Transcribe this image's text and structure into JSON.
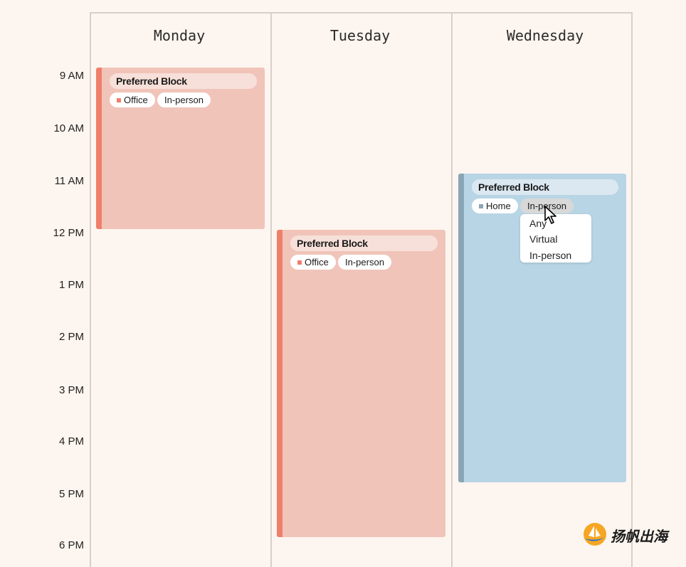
{
  "days": [
    "Monday",
    "Tuesday",
    "Wednesday"
  ],
  "times": [
    "9 AM",
    "10 AM",
    "11 AM",
    "12 PM",
    "1 PM",
    "2 PM",
    "3 PM",
    "4 PM",
    "5 PM",
    "6 PM"
  ],
  "blocks": [
    {
      "title": "Preferred Block",
      "location": "Office",
      "mode": "In-person",
      "color": "#f1c4b9"
    },
    {
      "title": "Preferred Block",
      "location": "Office",
      "mode": "In-person",
      "color": "#f1c4b9"
    },
    {
      "title": "Preferred Block",
      "location": "Home",
      "mode": "In-person",
      "color": "#b8d5e5"
    }
  ],
  "dropdown": {
    "options": [
      "Any",
      "Virtual",
      "In-person"
    ]
  },
  "watermark": {
    "text": "扬帆出海"
  },
  "colors": {
    "accent_red": "#ef7f6b",
    "accent_blue": "#8aa6b5",
    "background": "#fdf5ef"
  }
}
